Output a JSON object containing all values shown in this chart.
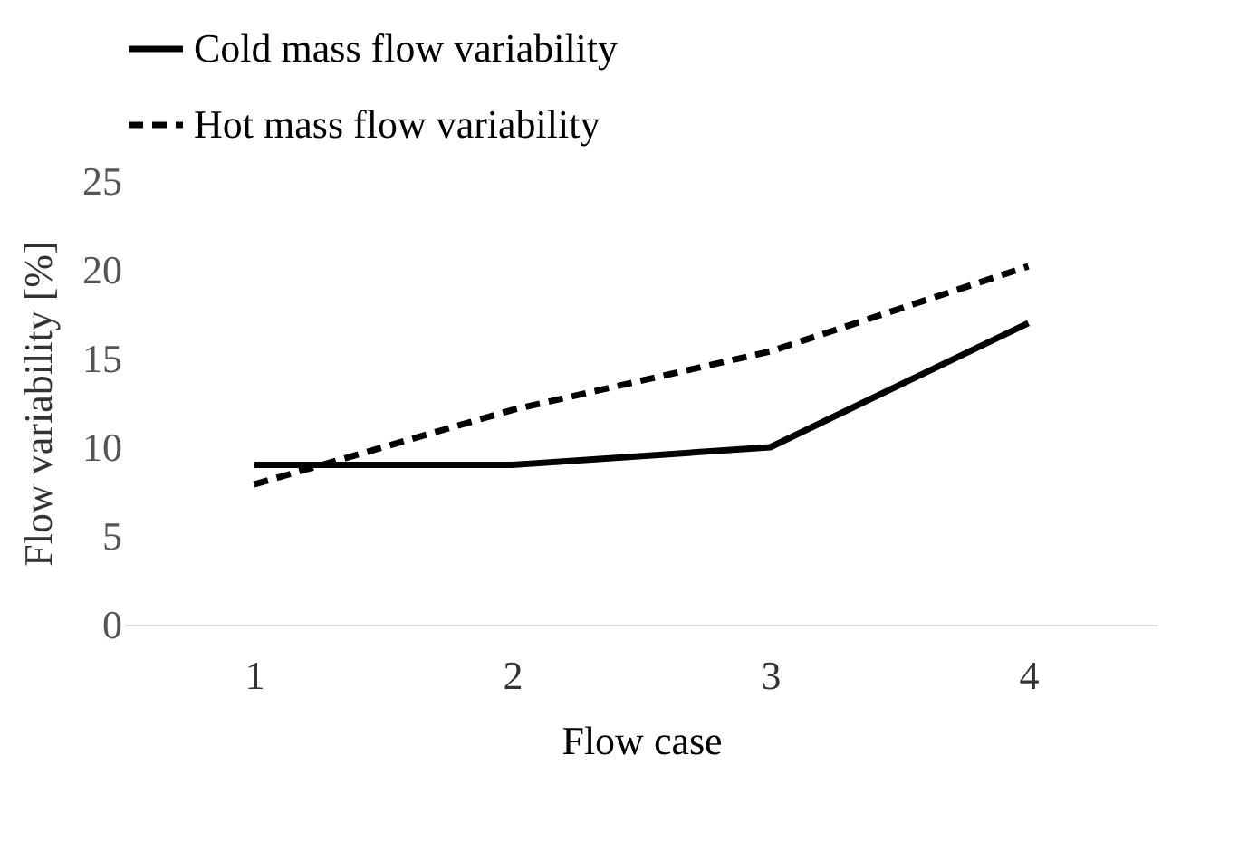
{
  "chart_data": {
    "type": "line",
    "xlabel": "Flow case",
    "ylabel": "Flow variability [%]",
    "categories": [
      "1",
      "2",
      "3",
      "4"
    ],
    "series": [
      {
        "name": "Cold mass flow variability",
        "color": "#000000",
        "line_style": "solid",
        "values": [
          9.0,
          9.0,
          10.0,
          17.0
        ]
      },
      {
        "name": "Hot mass flow variability",
        "color": "#000000",
        "line_style": "dashed",
        "values": [
          7.9,
          12.1,
          15.4,
          20.2
        ]
      }
    ],
    "ylim": [
      0,
      25
    ],
    "yticks": [
      0,
      5,
      10,
      15,
      20,
      25
    ],
    "grid": false,
    "legend": "top",
    "marker": "none"
  }
}
